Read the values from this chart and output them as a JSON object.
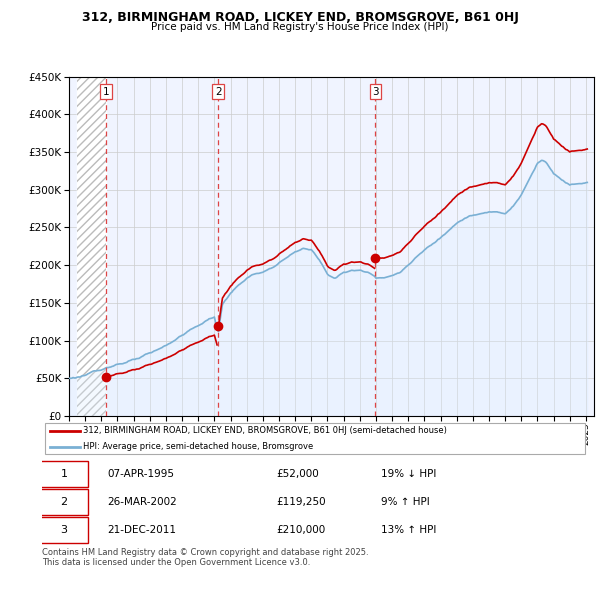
{
  "title": "312, BIRMINGHAM ROAD, LICKEY END, BROMSGROVE, B61 0HJ",
  "subtitle": "Price paid vs. HM Land Registry's House Price Index (HPI)",
  "sale_dates_num": [
    1995.27,
    2002.23,
    2011.97
  ],
  "sale_prices": [
    52000,
    119250,
    210000
  ],
  "sale_labels": [
    "1",
    "2",
    "3"
  ],
  "sold_line_color": "#cc0000",
  "hpi_line_color": "#7ab0d4",
  "hpi_fill_color": "#ddeeff",
  "vline_color": "#dd4444",
  "marker_color": "#cc0000",
  "ylim": [
    0,
    450000
  ],
  "xlim_start": 1993.5,
  "xlim_end": 2025.5,
  "yticks": [
    0,
    50000,
    100000,
    150000,
    200000,
    250000,
    300000,
    350000,
    400000,
    450000
  ],
  "xticks": [
    1993,
    1994,
    1995,
    1996,
    1997,
    1998,
    1999,
    2000,
    2001,
    2002,
    2003,
    2004,
    2005,
    2006,
    2007,
    2008,
    2009,
    2010,
    2011,
    2012,
    2013,
    2014,
    2015,
    2016,
    2017,
    2018,
    2019,
    2020,
    2021,
    2022,
    2023,
    2024,
    2025
  ],
  "legend_property_label": "312, BIRMINGHAM ROAD, LICKEY END, BROMSGROVE, B61 0HJ (semi-detached house)",
  "legend_hpi_label": "HPI: Average price, semi-detached house, Bromsgrove",
  "table_rows": [
    {
      "num": "1",
      "date": "07-APR-1995",
      "price": "£52,000",
      "pct": "19% ↓ HPI"
    },
    {
      "num": "2",
      "date": "26-MAR-2002",
      "price": "£119,250",
      "pct": "9% ↑ HPI"
    },
    {
      "num": "3",
      "date": "21-DEC-2011",
      "price": "£210,000",
      "pct": "13% ↑ HPI"
    }
  ],
  "footnote": "Contains HM Land Registry data © Crown copyright and database right 2025.\nThis data is licensed under the Open Government Licence v3.0."
}
